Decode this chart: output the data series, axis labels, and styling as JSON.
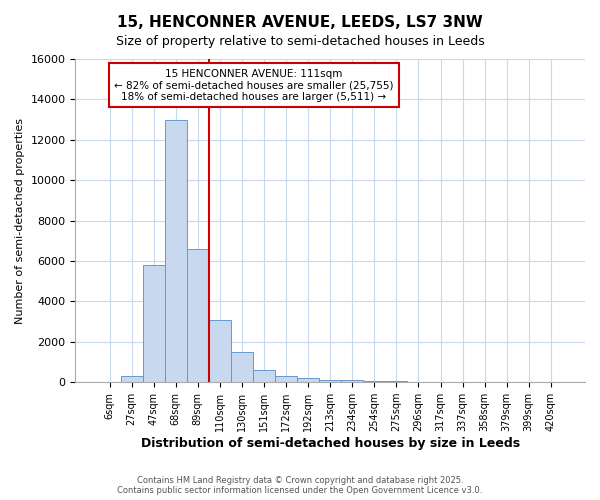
{
  "title": "15, HENCONNER AVENUE, LEEDS, LS7 3NW",
  "subtitle": "Size of property relative to semi-detached houses in Leeds",
  "xlabel": "Distribution of semi-detached houses by size in Leeds",
  "ylabel": "Number of semi-detached properties",
  "footer_line1": "Contains HM Land Registry data © Crown copyright and database right 2025.",
  "footer_line2": "Contains public sector information licensed under the Open Government Licence v3.0.",
  "annotation_title": "15 HENCONNER AVENUE: 111sqm",
  "annotation_line1": "← 82% of semi-detached houses are smaller (25,755)",
  "annotation_line2": "18% of semi-detached houses are larger (5,511) →",
  "property_bin_index": 4,
  "categories": [
    "6sqm",
    "27sqm",
    "47sqm",
    "68sqm",
    "89sqm",
    "110sqm",
    "130sqm",
    "151sqm",
    "172sqm",
    "192sqm",
    "213sqm",
    "234sqm",
    "254sqm",
    "275sqm",
    "296sqm",
    "317sqm",
    "337sqm",
    "358sqm",
    "379sqm",
    "399sqm",
    "420sqm"
  ],
  "values": [
    0,
    300,
    5800,
    13000,
    6600,
    3100,
    1500,
    600,
    300,
    200,
    100,
    100,
    50,
    50,
    0,
    0,
    0,
    0,
    0,
    0,
    0
  ],
  "bar_color": "#c8d8ee",
  "bar_edgecolor": "#6699cc",
  "redline_color": "#cc0000",
  "annotation_box_color": "#cc0000",
  "ylim": [
    0,
    16000
  ],
  "yticks": [
    0,
    2000,
    4000,
    6000,
    8000,
    10000,
    12000,
    14000,
    16000
  ],
  "background_color": "#ffffff",
  "plot_bg_color": "#ffffff",
  "grid_color": "#c8d8ee"
}
